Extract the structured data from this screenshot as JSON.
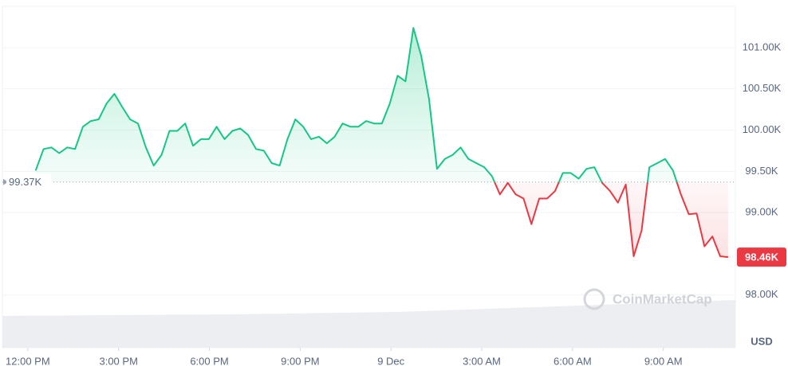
{
  "chart_data": {
    "type": "line",
    "x": [
      0.26,
      0.52,
      0.78,
      1.04,
      1.3,
      1.56,
      1.82,
      2.08,
      2.34,
      2.6,
      2.86,
      3.12,
      3.38,
      3.64,
      3.9,
      4.16,
      4.42,
      4.68,
      4.94,
      5.2,
      5.46,
      5.72,
      5.98,
      6.24,
      6.5,
      6.76,
      7.02,
      7.28,
      7.54,
      7.8,
      8.06,
      8.32,
      8.58,
      8.84,
      9.1,
      9.36,
      9.62,
      9.88,
      10.14,
      10.4,
      10.66,
      10.92,
      11.18,
      11.44,
      11.7,
      11.96,
      12.22,
      12.48,
      12.74,
      13,
      13.26,
      13.52,
      13.78,
      14.04,
      14.3,
      14.56,
      14.82,
      15.08,
      15.34,
      15.6,
      15.86,
      16.12,
      16.38,
      16.64,
      16.9,
      17.16,
      17.42,
      17.68,
      17.94,
      18.2,
      18.46,
      18.72,
      18.98,
      19.24,
      19.5,
      19.76,
      20.02,
      20.28,
      20.54,
      20.8,
      21.06,
      21.32,
      21.58,
      21.84,
      22.1,
      22.36,
      22.62,
      22.88,
      23.14
    ],
    "series": [
      {
        "up_color": "#16c784",
        "down_color": "#ea3943",
        "values": [
          99.51,
          99.77,
          99.79,
          99.72,
          99.79,
          99.77,
          100.04,
          100.11,
          100.13,
          100.32,
          100.44,
          100.28,
          100.13,
          100.08,
          99.79,
          99.57,
          99.7,
          99.99,
          99.99,
          100.08,
          99.81,
          99.89,
          99.89,
          100.04,
          99.89,
          99.99,
          100.02,
          99.94,
          99.77,
          99.75,
          99.6,
          99.57,
          99.89,
          100.13,
          100.04,
          99.89,
          99.92,
          99.84,
          99.92,
          100.08,
          100.04,
          100.04,
          100.11,
          100.08,
          100.08,
          100.32,
          100.66,
          100.59,
          101.24,
          100.9,
          100.37,
          99.53,
          99.65,
          99.7,
          99.79,
          99.65,
          99.6,
          99.55,
          99.44,
          99.22,
          99.36,
          99.22,
          99.17,
          98.86,
          99.17,
          99.17,
          99.26,
          99.48,
          99.48,
          99.41,
          99.53,
          99.55,
          99.36,
          99.26,
          99.12,
          99.34,
          98.47,
          98.78,
          99.55,
          99.6,
          99.65,
          99.51,
          99.22,
          98.98,
          98.99,
          98.59,
          98.71,
          98.47,
          98.46
        ]
      }
    ],
    "baseline": {
      "value": 99.37,
      "label": "99.37K"
    },
    "current": {
      "value": 98.46,
      "label": "98.46K"
    },
    "xlim": [
      -0.84,
      23.38
    ],
    "xticks": [
      {
        "value": 0,
        "label": "12:00 PM"
      },
      {
        "value": 3,
        "label": "3:00 PM"
      },
      {
        "value": 6,
        "label": "6:00 PM"
      },
      {
        "value": 9,
        "label": "9:00 PM"
      },
      {
        "value": 12,
        "label": "9 Dec"
      },
      {
        "value": 15,
        "label": "3:00 AM"
      },
      {
        "value": 18,
        "label": "6:00 AM"
      },
      {
        "value": 21,
        "label": "9:00 AM"
      }
    ],
    "ylim": [
      97.4,
      101.5
    ],
    "yticks": [
      {
        "value": 98,
        "label": "98.00K"
      },
      {
        "value": 99,
        "label": "99.00K"
      },
      {
        "value": 99.5,
        "label": "99.50K"
      },
      {
        "value": 100,
        "label": "100.00K"
      },
      {
        "value": 100.5,
        "label": "100.50K"
      },
      {
        "value": 101,
        "label": "101.00K"
      }
    ],
    "currency": "USD",
    "watermark": "CoinMarketCap",
    "grid": true
  }
}
